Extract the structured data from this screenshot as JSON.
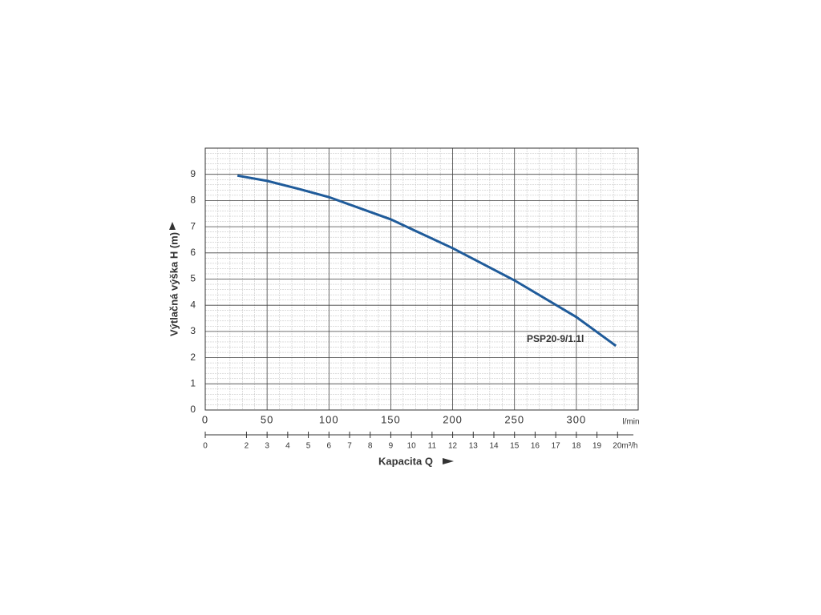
{
  "chart_data": {
    "type": "line",
    "x_label": "Kapacita Q",
    "y_label": "Výtlačná výška H (m)",
    "x_unit": "l/min",
    "x": [
      26,
      50,
      75,
      100,
      150,
      200,
      250,
      300,
      332
    ],
    "series": [
      {
        "name": "PSP20-9/1.1l",
        "color": "#1f5b9a",
        "values": [
          8.95,
          8.75,
          8.45,
          8.13,
          7.28,
          6.18,
          4.95,
          3.55,
          2.45
        ]
      }
    ],
    "xlim": [
      0,
      350
    ],
    "xticks": [
      0,
      50,
      100,
      150,
      200,
      250,
      300
    ],
    "ylim": [
      0,
      10
    ],
    "yticks": [
      0,
      1,
      2,
      3,
      4,
      5,
      6,
      7,
      8,
      9
    ],
    "x2lim": [
      0,
      21
    ],
    "x2ticks": [
      0,
      2,
      3,
      4,
      5,
      6,
      7,
      8,
      9,
      10,
      11,
      12,
      13,
      14,
      15,
      16,
      17,
      18,
      19,
      {
        "value": 20,
        "label": "20m³/h"
      }
    ],
    "grid": true
  }
}
